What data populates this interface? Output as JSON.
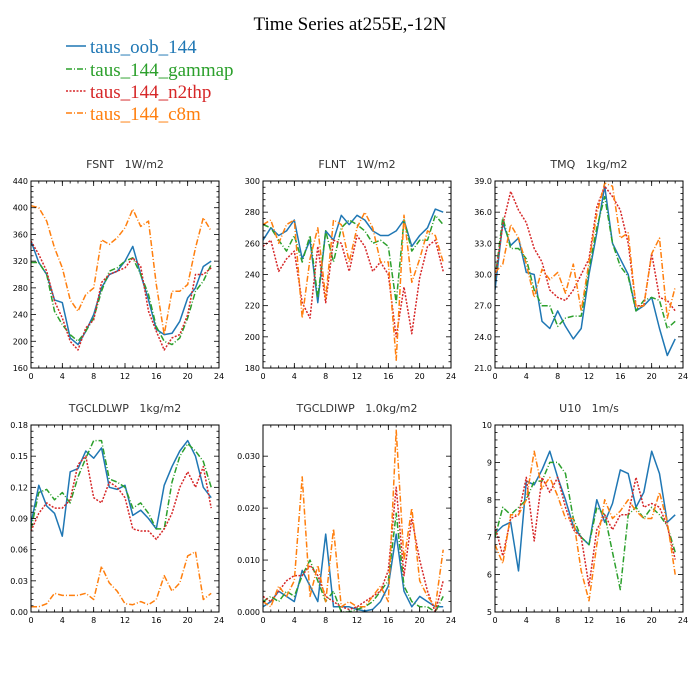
{
  "title": "Time Series at255E,-12N",
  "colors": {
    "taus_oob_144": "#1f77b4",
    "taus_144_gammap": "#2ca02c",
    "taus_144_n2thp": "#d62728",
    "taus_144_c8m": "#ff7f0e"
  },
  "legend": [
    {
      "label": "taus_oob_144",
      "color": "#1f77b4",
      "dash": "solid"
    },
    {
      "label": "taus_144_gammap",
      "color": "#2ca02c",
      "dash": "dashdot"
    },
    {
      "label": "taus_144_n2thp",
      "color": "#d62728",
      "dash": "dotted"
    },
    {
      "label": "taus_144_c8m",
      "color": "#ff7f0e",
      "dash": "dashdot"
    }
  ],
  "chart_data": [
    {
      "type": "line",
      "title": "FSNT   1W/m2",
      "x": [
        0,
        1,
        2,
        3,
        4,
        5,
        6,
        7,
        8,
        9,
        10,
        11,
        12,
        13,
        14,
        15,
        16,
        17,
        18,
        19,
        20,
        21,
        22,
        23
      ],
      "xlim": [
        0,
        24
      ],
      "xticks": [
        0,
        4,
        8,
        12,
        16,
        20,
        24
      ],
      "ylim": [
        160,
        440
      ],
      "yticks": [
        160,
        200,
        240,
        280,
        320,
        360,
        400,
        440
      ],
      "ytick_labels": [
        "160",
        "200",
        "240",
        "280",
        "320",
        "360",
        "400",
        "440"
      ],
      "series": [
        {
          "name": "taus_oob_144",
          "values": [
            350,
            318,
            300,
            262,
            258,
            205,
            195,
            215,
            240,
            280,
            300,
            305,
            320,
            342,
            300,
            262,
            218,
            210,
            212,
            230,
            265,
            280,
            312,
            320
          ]
        },
        {
          "name": "taus_144_gammap",
          "values": [
            318,
            318,
            300,
            245,
            225,
            210,
            200,
            215,
            235,
            275,
            305,
            310,
            320,
            325,
            300,
            270,
            222,
            200,
            195,
            205,
            235,
            275,
            290,
            315
          ]
        },
        {
          "name": "taus_144_n2thp",
          "values": [
            350,
            330,
            305,
            260,
            235,
            200,
            187,
            220,
            232,
            288,
            300,
            305,
            310,
            325,
            312,
            245,
            215,
            187,
            205,
            210,
            240,
            300,
            300,
            310
          ]
        },
        {
          "name": "taus_144_c8m",
          "values": [
            403,
            400,
            380,
            340,
            310,
            262,
            245,
            270,
            280,
            352,
            345,
            355,
            370,
            398,
            372,
            380,
            285,
            210,
            275,
            275,
            285,
            340,
            385,
            365
          ]
        }
      ]
    },
    {
      "type": "line",
      "title": "FLNT   1W/m2",
      "x": [
        0,
        1,
        2,
        3,
        4,
        5,
        6,
        7,
        8,
        9,
        10,
        11,
        12,
        13,
        14,
        15,
        16,
        17,
        18,
        19,
        20,
        21,
        22,
        23
      ],
      "xlim": [
        0,
        24
      ],
      "xticks": [
        0,
        4,
        8,
        12,
        16,
        20,
        24
      ],
      "ylim": [
        180,
        300
      ],
      "yticks": [
        180,
        200,
        220,
        240,
        260,
        280,
        300
      ],
      "ytick_labels": [
        "180",
        "200",
        "220",
        "240",
        "260",
        "280",
        "300"
      ],
      "series": [
        {
          "name": "taus_oob_144",
          "values": [
            262,
            270,
            265,
            268,
            275,
            250,
            262,
            222,
            268,
            262,
            278,
            272,
            278,
            275,
            268,
            265,
            265,
            268,
            275,
            258,
            265,
            270,
            282,
            280
          ]
        },
        {
          "name": "taus_144_gammap",
          "values": [
            272,
            270,
            262,
            255,
            265,
            248,
            265,
            225,
            268,
            248,
            270,
            275,
            272,
            268,
            260,
            262,
            258,
            222,
            275,
            255,
            262,
            262,
            278,
            272
          ]
        },
        {
          "name": "taus_144_n2thp",
          "values": [
            258,
            262,
            242,
            250,
            255,
            222,
            212,
            258,
            222,
            262,
            260,
            242,
            265,
            258,
            242,
            248,
            240,
            200,
            232,
            202,
            238,
            258,
            262,
            242
          ]
        },
        {
          "name": "taus_144_c8m",
          "values": [
            272,
            275,
            260,
            272,
            275,
            212,
            250,
            270,
            225,
            275,
            272,
            248,
            270,
            280,
            270,
            248,
            248,
            185,
            278,
            235,
            250,
            268,
            265,
            248
          ]
        }
      ]
    },
    {
      "type": "line",
      "title": "TMQ   1kg/m2",
      "x": [
        0,
        1,
        2,
        3,
        4,
        5,
        6,
        7,
        8,
        9,
        10,
        11,
        12,
        13,
        14,
        15,
        16,
        17,
        18,
        19,
        20,
        21,
        22,
        23
      ],
      "xlim": [
        0,
        24
      ],
      "xticks": [
        0,
        4,
        8,
        12,
        16,
        20,
        24
      ],
      "ylim": [
        21,
        39
      ],
      "yticks": [
        21,
        24,
        27,
        30,
        33,
        36,
        39
      ],
      "ytick_labels": [
        "21.0",
        "24.0",
        "27.0",
        "30.0",
        "33.0",
        "36.0",
        "39.0"
      ],
      "series": [
        {
          "name": "taus_oob_144",
          "values": [
            28.5,
            35,
            32.8,
            33.5,
            30.2,
            30,
            25.5,
            24.8,
            26.5,
            25,
            23.8,
            24.8,
            30,
            34,
            38.5,
            33,
            31.5,
            30,
            26.5,
            27,
            27.8,
            24.8,
            22.2,
            23.8
          ]
        },
        {
          "name": "taus_144_gammap",
          "values": [
            29.5,
            35.5,
            32.5,
            32.5,
            31.5,
            28.5,
            27,
            27,
            25,
            25.8,
            26,
            26,
            30.5,
            34.5,
            37.5,
            33,
            30.8,
            29.8,
            26.5,
            27.5,
            27.8,
            27.5,
            24.8,
            25.5
          ]
        },
        {
          "name": "taus_144_n2thp",
          "values": [
            29.5,
            34.8,
            38,
            36.2,
            35,
            32.5,
            31.2,
            28.5,
            27.8,
            27.5,
            28.5,
            30,
            31.5,
            36.5,
            38.5,
            37.5,
            36.2,
            33,
            27,
            27,
            32,
            27.8,
            27.5,
            26.5
          ]
        },
        {
          "name": "taus_144_c8m",
          "values": [
            30.2,
            31,
            34.8,
            33.5,
            31,
            27.8,
            30.5,
            29.5,
            30.2,
            28.2,
            31,
            26.5,
            31.2,
            35.8,
            38.8,
            38.5,
            33.5,
            34,
            26.8,
            27,
            32,
            33.5,
            25.8,
            28.8
          ]
        }
      ]
    },
    {
      "type": "line",
      "title": "TGCLDLWP   1kg/m2",
      "x": [
        0,
        1,
        2,
        3,
        4,
        5,
        6,
        7,
        8,
        9,
        10,
        11,
        12,
        13,
        14,
        15,
        16,
        17,
        18,
        19,
        20,
        21,
        22,
        23
      ],
      "xlim": [
        0,
        24
      ],
      "xticks": [
        0,
        4,
        8,
        12,
        16,
        20,
        24
      ],
      "ylim": [
        0,
        0.18
      ],
      "yticks": [
        0,
        0.03,
        0.06,
        0.09,
        0.12,
        0.15,
        0.18
      ],
      "ytick_labels": [
        "0.00",
        "0.03",
        "0.06",
        "0.09",
        "0.12",
        "0.15",
        "0.18"
      ],
      "series": [
        {
          "name": "taus_oob_144",
          "values": [
            0.085,
            0.122,
            0.102,
            0.095,
            0.073,
            0.135,
            0.138,
            0.155,
            0.148,
            0.158,
            0.12,
            0.118,
            0.122,
            0.093,
            0.098,
            0.09,
            0.08,
            0.122,
            0.14,
            0.155,
            0.165,
            0.15,
            0.12,
            0.11
          ]
        },
        {
          "name": "taus_144_gammap",
          "values": [
            0.08,
            0.115,
            0.118,
            0.108,
            0.115,
            0.105,
            0.13,
            0.148,
            0.165,
            0.165,
            0.128,
            0.125,
            0.12,
            0.1,
            0.105,
            0.095,
            0.08,
            0.08,
            0.125,
            0.15,
            0.162,
            0.155,
            0.145,
            0.12
          ]
        },
        {
          "name": "taus_144_n2thp",
          "values": [
            0.078,
            0.095,
            0.105,
            0.1,
            0.1,
            0.108,
            0.142,
            0.15,
            0.11,
            0.105,
            0.125,
            0.12,
            0.11,
            0.08,
            0.078,
            0.078,
            0.07,
            0.08,
            0.095,
            0.12,
            0.135,
            0.12,
            0.14,
            0.1
          ]
        },
        {
          "name": "taus_144_c8m",
          "values": [
            0.005,
            0.005,
            0.008,
            0.018,
            0.016,
            0.016,
            0.016,
            0.018,
            0.012,
            0.044,
            0.028,
            0.02,
            0.008,
            0.007,
            0.01,
            0.007,
            0.012,
            0.035,
            0.02,
            0.028,
            0.054,
            0.058,
            0.012,
            0.018
          ]
        }
      ]
    },
    {
      "type": "line",
      "title": "TGCLDIWP   1.0kg/m2",
      "x": [
        0,
        1,
        2,
        3,
        4,
        5,
        6,
        7,
        8,
        9,
        10,
        11,
        12,
        13,
        14,
        15,
        16,
        17,
        18,
        19,
        20,
        21,
        22,
        23
      ],
      "xlim": [
        0,
        24
      ],
      "xticks": [
        0,
        4,
        8,
        12,
        16,
        20,
        24
      ],
      "ylim": [
        0,
        0.036
      ],
      "yticks": [
        0,
        0.01,
        0.02,
        0.03
      ],
      "ytick_labels": [
        "0.000",
        "0.010",
        "0.020",
        "0.030"
      ],
      "series": [
        {
          "name": "taus_oob_144",
          "values": [
            0.001,
            0.002,
            0.004,
            0.003,
            0.002,
            0.008,
            0.005,
            0.002,
            0.015,
            0.001,
            0.001,
            0.001,
            0.0005,
            0.0002,
            0.0005,
            0.002,
            0.005,
            0.015,
            0.004,
            0.001,
            0.003,
            0.002,
            0.001,
            0.001
          ]
        },
        {
          "name": "taus_144_gammap",
          "values": [
            0.002,
            0.003,
            0.002,
            0.004,
            0.003,
            0.007,
            0.01,
            0.006,
            0.002,
            0.004,
            0.0,
            0.0,
            0.0005,
            0.001,
            0.002,
            0.004,
            0.006,
            0.019,
            0.005,
            0.002,
            0.001,
            0.001,
            0.0,
            0.003
          ]
        },
        {
          "name": "taus_144_n2thp",
          "values": [
            0.003,
            0.002,
            0.004,
            0.006,
            0.007,
            0.007,
            0.009,
            0.007,
            0.003,
            0.002,
            0.001,
            0.0005,
            0.001,
            0.002,
            0.003,
            0.004,
            0.008,
            0.024,
            0.007,
            0.018,
            0.01,
            0.004,
            0.0,
            0.006
          ]
        },
        {
          "name": "taus_144_c8m",
          "values": [
            0.002,
            0.001,
            0.005,
            0.003,
            0.006,
            0.026,
            0.003,
            0.009,
            0.002,
            0.016,
            0.001,
            0.002,
            0.001,
            0.001,
            0.003,
            0.005,
            0.002,
            0.035,
            0.01,
            0.02,
            0.006,
            0.003,
            0.001,
            0.012
          ]
        }
      ]
    },
    {
      "type": "line",
      "title": "U10   1m/s",
      "x": [
        0,
        1,
        2,
        3,
        4,
        5,
        6,
        7,
        8,
        9,
        10,
        11,
        12,
        13,
        14,
        15,
        16,
        17,
        18,
        19,
        20,
        21,
        22,
        23
      ],
      "xlim": [
        0,
        24
      ],
      "xticks": [
        0,
        4,
        8,
        12,
        16,
        20,
        24
      ],
      "ylim": [
        5,
        10
      ],
      "yticks": [
        5,
        6,
        7,
        8,
        9,
        10
      ],
      "ytick_labels": [
        "5",
        "6",
        "7",
        "8",
        "9",
        "10"
      ],
      "series": [
        {
          "name": "taus_oob_144",
          "values": [
            7.1,
            7.3,
            7.4,
            6.1,
            8.5,
            8.4,
            8.8,
            9.3,
            8.6,
            8.0,
            7.3,
            7.0,
            6.8,
            8.0,
            7.4,
            7.9,
            8.8,
            8.7,
            7.8,
            8.2,
            9.3,
            8.7,
            7.4,
            7.6
          ]
        },
        {
          "name": "taus_144_gammap",
          "values": [
            7.0,
            7.8,
            7.6,
            7.8,
            8.0,
            8.5,
            8.5,
            9.0,
            9.0,
            8.7,
            7.5,
            7.0,
            6.8,
            7.8,
            7.6,
            6.6,
            5.6,
            7.6,
            7.8,
            7.5,
            7.8,
            7.6,
            7.3,
            6.6
          ]
        },
        {
          "name": "taus_144_n2thp",
          "values": [
            7.3,
            6.5,
            7.5,
            7.6,
            8.6,
            6.9,
            8.6,
            8.2,
            8.6,
            7.8,
            7.2,
            7.0,
            5.7,
            7.2,
            7.6,
            7.2,
            7.6,
            7.6,
            8.6,
            7.8,
            7.9,
            7.8,
            7.3,
            6.4
          ]
        },
        {
          "name": "taus_144_c8m",
          "values": [
            6.8,
            6.3,
            7.6,
            7.6,
            8.0,
            9.3,
            8.3,
            8.6,
            8.1,
            7.5,
            7.5,
            6.1,
            5.3,
            6.8,
            8.0,
            7.5,
            7.7,
            8.0,
            7.7,
            7.5,
            7.5,
            8.2,
            7.4,
            6.0
          ]
        }
      ]
    }
  ]
}
